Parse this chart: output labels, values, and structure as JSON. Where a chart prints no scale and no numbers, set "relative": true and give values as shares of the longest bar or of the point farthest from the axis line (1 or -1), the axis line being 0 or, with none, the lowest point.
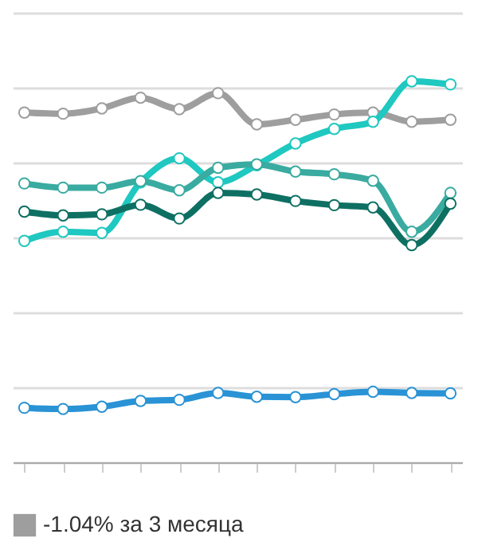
{
  "chart_data": {
    "type": "line",
    "relative": true,
    "categories": [
      null,
      null,
      null,
      null,
      null,
      null,
      null,
      null,
      null,
      null,
      null,
      null
    ],
    "series": [
      {
        "name": "-1.04% за 3 месяца",
        "color": "#9e9e9e",
        "values": [
          0.918,
          0.915,
          0.929,
          0.957,
          0.927,
          0.969,
          0.887,
          0.899,
          0.913,
          0.918,
          0.894,
          0.899
        ]
      },
      {
        "color": "#1fc8c0",
        "values": [
          0.581,
          0.605,
          0.602,
          0.735,
          0.798,
          0.735,
          0.78,
          0.837,
          0.875,
          0.894,
          1,
          0.992
        ]
      },
      {
        "color": "#3aaba0",
        "values": [
          0.732,
          0.721,
          0.721,
          0.738,
          0.714,
          0.773,
          0.782,
          0.763,
          0.756,
          0.739,
          0.605,
          0.707
        ]
      },
      {
        "color": "#0e7063",
        "values": [
          0.658,
          0.648,
          0.651,
          0.676,
          0.64,
          0.707,
          0.703,
          0.686,
          0.675,
          0.669,
          0.57,
          0.679
        ]
      },
      {
        "color": "#2a93d5",
        "values": [
          0.143,
          0.14,
          0.146,
          0.161,
          0.164,
          0.182,
          0.172,
          0.171,
          0.179,
          0.185,
          0.182,
          0.181
        ]
      }
    ],
    "marker": "circle",
    "line_style": "solid",
    "grid": "y",
    "legend": "bottom left"
  }
}
